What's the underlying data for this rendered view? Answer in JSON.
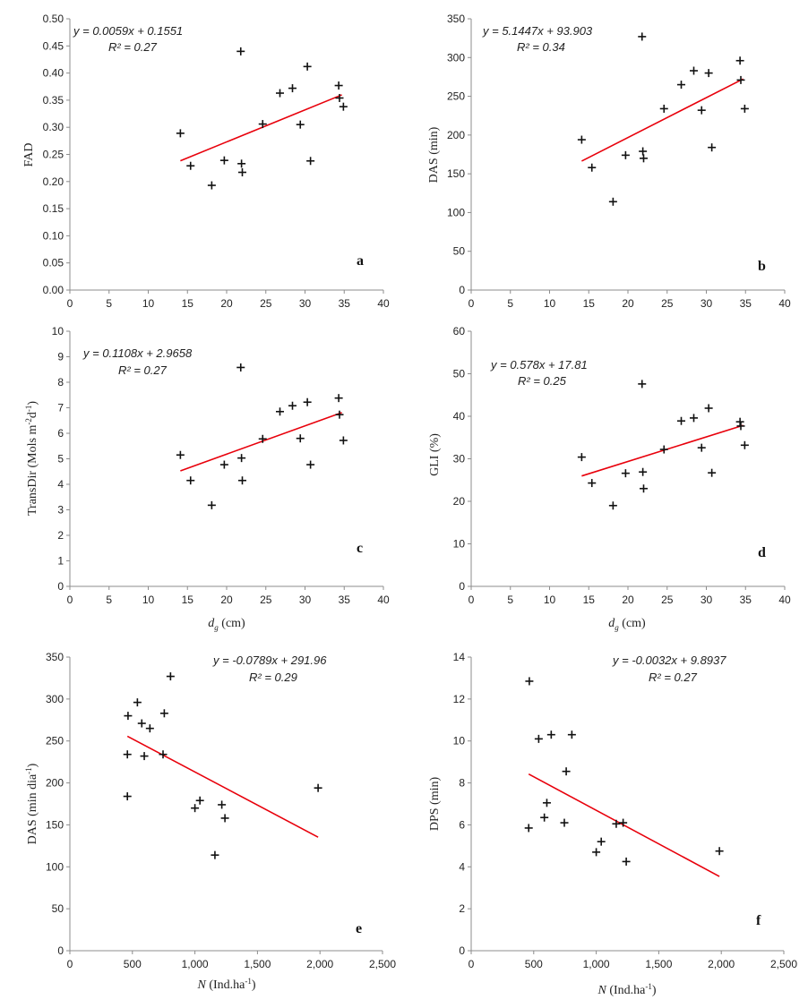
{
  "figure": {
    "title": ""
  },
  "chart_data": [
    {
      "id": "a",
      "type": "scatter",
      "panel_label": "a",
      "xlabel": "",
      "ylabel": "FAD",
      "xlim": [
        0,
        40
      ],
      "ylim": [
        0,
        0.5
      ],
      "x_ticks": [
        0,
        5,
        10,
        15,
        20,
        25,
        30,
        35,
        40
      ],
      "x_tick_labels": [
        "0",
        "5",
        "10",
        "15",
        "20",
        "25",
        "30",
        "35",
        "40"
      ],
      "y_ticks": [
        0,
        0.05,
        0.1,
        0.15,
        0.2,
        0.25,
        0.3,
        0.35,
        0.4,
        0.45,
        0.5
      ],
      "y_tick_labels": [
        "0.00",
        "0.05",
        "0.10",
        "0.15",
        "0.20",
        "0.25",
        "0.30",
        "0.35",
        "0.40",
        "0.45",
        "0.50"
      ],
      "equation": "y = 0.0059x + 0.1551",
      "r2": "R² = 0.27",
      "trend": {
        "slope": 0.0059,
        "intercept": 0.1551,
        "x_range": [
          14.1,
          34.7
        ],
        "color": "#e8000b"
      },
      "points": [
        [
          14.1,
          0.289
        ],
        [
          15.4,
          0.229
        ],
        [
          18.1,
          0.193
        ],
        [
          19.7,
          0.239
        ],
        [
          21.8,
          0.44
        ],
        [
          21.9,
          0.233
        ],
        [
          22.0,
          0.217
        ],
        [
          24.6,
          0.306
        ],
        [
          26.8,
          0.363
        ],
        [
          28.4,
          0.372
        ],
        [
          29.4,
          0.305
        ],
        [
          30.3,
          0.412
        ],
        [
          30.7,
          0.238
        ],
        [
          34.3,
          0.377
        ],
        [
          34.4,
          0.354
        ],
        [
          34.9,
          0.338
        ]
      ]
    },
    {
      "id": "b",
      "type": "scatter",
      "panel_label": "b",
      "xlabel": "",
      "ylabel": "DAS (min)",
      "xlim": [
        0,
        40
      ],
      "ylim": [
        0,
        350
      ],
      "x_ticks": [
        0,
        5,
        10,
        15,
        20,
        25,
        30,
        35,
        40
      ],
      "x_tick_labels": [
        "0",
        "5",
        "10",
        "15",
        "20",
        "25",
        "30",
        "35",
        "40"
      ],
      "y_ticks": [
        0,
        50,
        100,
        150,
        200,
        250,
        300,
        350
      ],
      "y_tick_labels": [
        "0",
        "50",
        "100",
        "150",
        "200",
        "250",
        "300",
        "350"
      ],
      "equation": "y = 5.1447x + 93.903",
      "r2": "R² = 0.34",
      "trend": {
        "slope": 5.1447,
        "intercept": 93.903,
        "x_range": [
          14.1,
          34.7
        ],
        "color": "#e8000b"
      },
      "points": [
        [
          14.1,
          194
        ],
        [
          15.4,
          158
        ],
        [
          18.1,
          114
        ],
        [
          19.7,
          174
        ],
        [
          21.8,
          327
        ],
        [
          21.9,
          179
        ],
        [
          22.0,
          170
        ],
        [
          24.6,
          234
        ],
        [
          26.8,
          265
        ],
        [
          28.4,
          283
        ],
        [
          29.4,
          232
        ],
        [
          30.3,
          280
        ],
        [
          30.7,
          184
        ],
        [
          34.3,
          296
        ],
        [
          34.4,
          271
        ],
        [
          34.9,
          234
        ]
      ]
    },
    {
      "id": "c",
      "type": "scatter",
      "panel_label": "c",
      "xlabel": "",
      "xlabel_main": "d",
      "xlabel_sub": "g",
      "xlabel_unit": " (cm)",
      "ylabel": "",
      "ylabel_main": "TransDir (Mols m",
      "ylabel_sup1": "-2",
      "ylabel_mid": "d",
      "ylabel_sup2": "-1",
      "ylabel_end": ")",
      "xlim": [
        0,
        40
      ],
      "ylim": [
        0,
        10
      ],
      "x_ticks": [
        0,
        5,
        10,
        15,
        20,
        25,
        30,
        35,
        40
      ],
      "x_tick_labels": [
        "0",
        "5",
        "10",
        "15",
        "20",
        "25",
        "30",
        "35",
        "40"
      ],
      "y_ticks": [
        0,
        1,
        2,
        3,
        4,
        5,
        6,
        7,
        8,
        9,
        10
      ],
      "y_tick_labels": [
        "0",
        "1",
        "2",
        "3",
        "4",
        "5",
        "6",
        "7",
        "8",
        "9",
        "10"
      ],
      "equation": "y = 0.1108x + 2.9658",
      "r2": "R² = 0.27",
      "trend": {
        "slope": 0.1108,
        "intercept": 2.9658,
        "x_range": [
          14.1,
          34.7
        ],
        "color": "#e8000b"
      },
      "points": [
        [
          14.1,
          5.15
        ],
        [
          15.4,
          4.15
        ],
        [
          18.1,
          3.18
        ],
        [
          19.7,
          4.77
        ],
        [
          21.8,
          8.58
        ],
        [
          21.9,
          5.03
        ],
        [
          22.0,
          4.15
        ],
        [
          24.6,
          5.78
        ],
        [
          26.8,
          6.85
        ],
        [
          28.4,
          7.08
        ],
        [
          29.4,
          5.8
        ],
        [
          30.3,
          7.22
        ],
        [
          30.7,
          4.77
        ],
        [
          34.3,
          7.38
        ],
        [
          34.4,
          6.73
        ],
        [
          34.9,
          5.72
        ]
      ]
    },
    {
      "id": "d",
      "type": "scatter",
      "panel_label": "d",
      "xlabel": "",
      "xlabel_main": "d",
      "xlabel_sub": "g",
      "xlabel_unit": " (cm)",
      "ylabel": "GLI (%)",
      "xlim": [
        0,
        40
      ],
      "ylim": [
        0,
        60
      ],
      "x_ticks": [
        0,
        5,
        10,
        15,
        20,
        25,
        30,
        35,
        40
      ],
      "x_tick_labels": [
        "0",
        "5",
        "10",
        "15",
        "20",
        "25",
        "30",
        "35",
        "40"
      ],
      "y_ticks": [
        0,
        10,
        20,
        30,
        40,
        50,
        60
      ],
      "y_tick_labels": [
        "0",
        "10",
        "20",
        "30",
        "40",
        "50",
        "60"
      ],
      "equation": "y = 0.578x + 17.81",
      "r2": "R² = 0.25",
      "trend": {
        "slope": 0.578,
        "intercept": 17.81,
        "x_range": [
          14.1,
          34.7
        ],
        "color": "#e8000b"
      },
      "points": [
        [
          14.1,
          30.4
        ],
        [
          15.4,
          24.3
        ],
        [
          18.1,
          19.0
        ],
        [
          19.7,
          26.6
        ],
        [
          21.8,
          47.6
        ],
        [
          21.9,
          26.9
        ],
        [
          22.0,
          23.0
        ],
        [
          24.6,
          32.2
        ],
        [
          26.8,
          38.9
        ],
        [
          28.4,
          39.6
        ],
        [
          29.4,
          32.6
        ],
        [
          30.3,
          41.9
        ],
        [
          30.7,
          26.7
        ],
        [
          34.3,
          38.7
        ],
        [
          34.4,
          37.7
        ],
        [
          34.9,
          33.2
        ]
      ]
    },
    {
      "id": "e",
      "type": "scatter",
      "panel_label": "e",
      "xlabel": "",
      "xlabel_main": "N",
      "xlabel_unit": " (Ind.ha",
      "xlabel_sup": "-1",
      "xlabel_end": ")",
      "ylabel": "",
      "ylabel_main": "DAS (min dia",
      "ylabel_sup1": "-1",
      "ylabel_end": ")",
      "xlim": [
        0,
        2500
      ],
      "ylim": [
        0,
        350
      ],
      "x_ticks": [
        0,
        500,
        1000,
        1500,
        2000,
        2500
      ],
      "x_tick_labels": [
        "0",
        "500",
        "1,000",
        "1,500",
        "2,000",
        "2,500"
      ],
      "y_ticks": [
        0,
        50,
        100,
        150,
        200,
        250,
        300,
        350
      ],
      "y_tick_labels": [
        "0",
        "50",
        "100",
        "150",
        "200",
        "250",
        "300",
        "350"
      ],
      "equation": "y = -0.0789x + 291.96",
      "r2": "R² = 0.29",
      "trend": {
        "slope": -0.0789,
        "intercept": 291.96,
        "x_range": [
          460,
          1985
        ],
        "color": "#e8000b"
      },
      "points": [
        [
          465,
          280
        ],
        [
          460,
          234
        ],
        [
          460,
          184
        ],
        [
          540,
          296
        ],
        [
          575,
          271
        ],
        [
          595,
          232
        ],
        [
          640,
          265
        ],
        [
          745,
          234
        ],
        [
          755,
          283
        ],
        [
          805,
          327
        ],
        [
          1000,
          170
        ],
        [
          1040,
          179
        ],
        [
          1160,
          114
        ],
        [
          1215,
          174
        ],
        [
          1240,
          158
        ],
        [
          1985,
          194
        ]
      ]
    },
    {
      "id": "f",
      "type": "scatter",
      "panel_label": "f",
      "xlabel": "",
      "xlabel_main": "N",
      "xlabel_unit": " (Ind.ha",
      "xlabel_sup": "-1",
      "xlabel_end": ")",
      "ylabel": "DPS (min)",
      "xlim": [
        0,
        2500
      ],
      "ylim": [
        0,
        14
      ],
      "x_ticks": [
        0,
        500,
        1000,
        1500,
        2000,
        2500
      ],
      "x_tick_labels": [
        "0",
        "500",
        "1,000",
        "1,500",
        "2,000",
        "2,500"
      ],
      "y_ticks": [
        0,
        2,
        4,
        6,
        8,
        10,
        12,
        14
      ],
      "y_tick_labels": [
        "0",
        "2",
        "4",
        "6",
        "8",
        "10",
        "12",
        "14"
      ],
      "equation": "y = -0.0032x + 9.8937",
      "r2": "R² = 0.27",
      "trend": {
        "slope": -0.0032,
        "intercept": 9.8937,
        "x_range": [
          460,
          1985
        ],
        "color": "#e8000b"
      },
      "points": [
        [
          465,
          12.85
        ],
        [
          460,
          5.85
        ],
        [
          540,
          10.1
        ],
        [
          585,
          6.35
        ],
        [
          605,
          7.05
        ],
        [
          640,
          10.3
        ],
        [
          745,
          6.1
        ],
        [
          760,
          8.55
        ],
        [
          805,
          10.3
        ],
        [
          1000,
          4.7
        ],
        [
          1040,
          5.2
        ],
        [
          1160,
          6.05
        ],
        [
          1215,
          6.1
        ],
        [
          1240,
          4.25
        ],
        [
          1985,
          4.75
        ]
      ]
    }
  ]
}
